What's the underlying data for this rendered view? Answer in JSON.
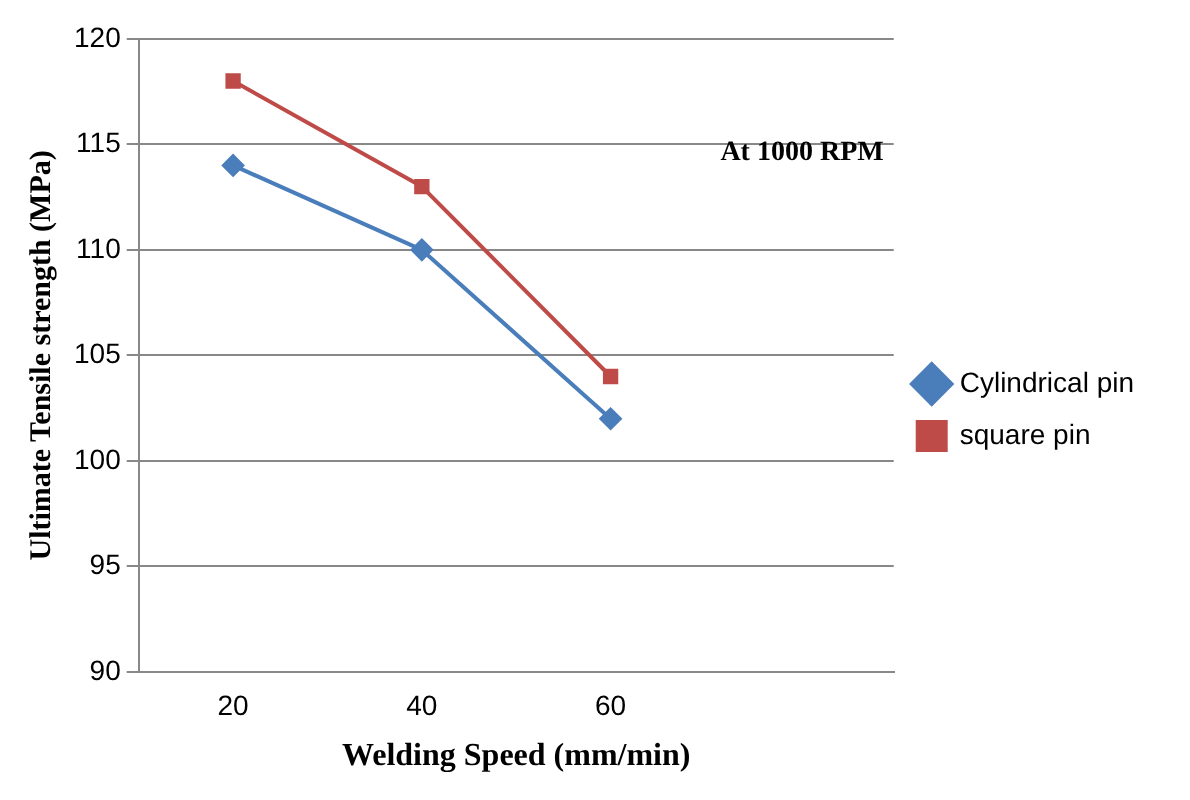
{
  "chart_data": {
    "type": "line",
    "xlabel": "Welding Speed (mm/min)",
    "ylabel": "Ultimate Tensile strength (MPa)",
    "categories": [
      "20",
      "40",
      "60",
      null
    ],
    "series": [
      {
        "name": "Cylindrical pin",
        "color": "#4a7ebb",
        "marker": "diamond",
        "values": [
          114,
          110,
          102,
          null
        ]
      },
      {
        "name": "square pin",
        "color": "#be4b48",
        "marker": "square",
        "values": [
          118,
          113,
          104,
          null
        ]
      }
    ],
    "ylim": [
      90,
      120
    ],
    "yticks": [
      90,
      95,
      100,
      105,
      110,
      115,
      120
    ],
    "grid": "y",
    "legend": "right",
    "annotations": [
      "At 1000 RPM"
    ]
  }
}
